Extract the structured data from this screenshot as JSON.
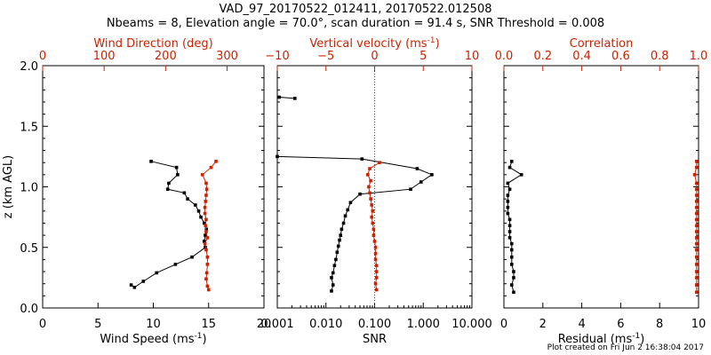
{
  "header": {
    "title": "VAD_97_20170522_012411, 20170522.012508",
    "subtitle": "Nbeams = 8, Elevation angle = 70.0°, scan duration = 91.4 s, SNR Threshold = 0.008"
  },
  "footer": "Plot created on Fri Jun  2 16:38:04 2017",
  "colors": {
    "primary": "#000000",
    "secondary": "#cc2200"
  },
  "chart_data": [
    {
      "type": "line",
      "panel": "left",
      "ylabel": "z (km AGL)",
      "ylim": [
        0,
        2.0
      ],
      "yticks": [
        "0.0",
        "0.5",
        "1.0",
        "1.5",
        "2.0"
      ],
      "xlabel": "Wind Speed (ms",
      "xlabel_sup": "-1",
      "xlabel_end": ")",
      "xlim": [
        0,
        20
      ],
      "xticks": [
        "0",
        "5",
        "10",
        "15",
        "20"
      ],
      "top_xlabel": "Wind Direction (deg)",
      "top_xlim": [
        0,
        360
      ],
      "top_xticks": [
        "0",
        "100",
        "200",
        "300"
      ],
      "series": [
        {
          "color": "#000000",
          "axis": "bottom",
          "points": [
            [
              9.8,
              1.21
            ],
            [
              12.1,
              1.16
            ],
            [
              12.2,
              1.1
            ],
            [
              11.4,
              1.03
            ],
            [
              11.3,
              0.98
            ],
            [
              12.8,
              0.95
            ],
            [
              13.1,
              0.9
            ],
            [
              13.8,
              0.85
            ],
            [
              14.1,
              0.8
            ],
            [
              14.3,
              0.75
            ],
            [
              14.6,
              0.7
            ],
            [
              14.8,
              0.65
            ],
            [
              14.7,
              0.6
            ],
            [
              14.6,
              0.55
            ],
            [
              14.7,
              0.5
            ],
            [
              13.5,
              0.42
            ],
            [
              12.0,
              0.36
            ],
            [
              10.3,
              0.29
            ],
            [
              9.1,
              0.22
            ],
            [
              8.3,
              0.17
            ],
            [
              8.0,
              0.19
            ]
          ]
        },
        {
          "color": "#cc2200",
          "axis": "top",
          "points": [
            [
              282,
              1.21
            ],
            [
              274,
              1.16
            ],
            [
              260,
              1.1
            ],
            [
              266,
              1.03
            ],
            [
              267,
              0.98
            ],
            [
              266,
              0.93
            ],
            [
              265,
              0.88
            ],
            [
              264,
              0.83
            ],
            [
              264,
              0.78
            ],
            [
              266,
              0.73
            ],
            [
              265,
              0.68
            ],
            [
              266,
              0.63
            ],
            [
              268,
              0.58
            ],
            [
              264,
              0.53
            ],
            [
              266,
              0.48
            ],
            [
              268,
              0.42
            ],
            [
              268,
              0.36
            ],
            [
              267,
              0.29
            ],
            [
              266,
              0.24
            ],
            [
              268,
              0.18
            ],
            [
              270,
              0.15
            ]
          ]
        }
      ]
    },
    {
      "type": "line",
      "panel": "middle",
      "xlabel": "SNR",
      "xscale": "log",
      "xlim": [
        0.001,
        10
      ],
      "xticks": [
        {
          "v": 0.001,
          "label": "0.001"
        },
        {
          "v": 0.01,
          "label": "0.010"
        },
        {
          "v": 0.1,
          "label": "0.100"
        },
        {
          "v": 1,
          "label": "1.000"
        },
        {
          "v": 10,
          "label": "10.000"
        }
      ],
      "top_xlabel": "Vertical velocity (ms",
      "top_xlabel_sup": "-1",
      "top_xlabel_end": ")",
      "top_xlim": [
        -10,
        10
      ],
      "top_xticks": [
        "−10",
        "−5",
        "0",
        "5",
        "10"
      ],
      "reference_line": {
        "axis": "top",
        "value": 0,
        "style": "dotted",
        "color": "#cc2200"
      },
      "series": [
        {
          "color": "#000000",
          "axis": "bottom",
          "segments": [
            [
              [
                0.0011,
                1.74
              ],
              [
                0.0023,
                1.73
              ]
            ],
            [
              [
                0.001,
                1.25
              ],
              [
                0.055,
                1.23
              ],
              [
                0.75,
                1.15
              ],
              [
                1.5,
                1.1
              ],
              [
                0.9,
                1.04
              ],
              [
                0.55,
                0.98
              ],
              [
                0.05,
                0.94
              ],
              [
                0.032,
                0.87
              ],
              [
                0.028,
                0.81
              ],
              [
                0.025,
                0.76
              ],
              [
                0.023,
                0.7
              ],
              [
                0.021,
                0.65
              ],
              [
                0.02,
                0.6
              ],
              [
                0.019,
                0.56
              ],
              [
                0.018,
                0.51
              ],
              [
                0.017,
                0.46
              ],
              [
                0.016,
                0.4
              ],
              [
                0.015,
                0.35
              ],
              [
                0.014,
                0.29
              ],
              [
                0.013,
                0.25
              ],
              [
                0.014,
                0.19
              ],
              [
                0.013,
                0.14
              ]
            ]
          ]
        },
        {
          "color": "#cc2200",
          "axis": "top",
          "segments": [
            [
              [
                0.5,
                1.2
              ],
              [
                -0.5,
                1.15
              ],
              [
                -0.7,
                1.1
              ],
              [
                -0.4,
                1.05
              ],
              [
                -0.6,
                1.0
              ],
              [
                -0.5,
                0.95
              ],
              [
                -0.4,
                0.9
              ],
              [
                -0.3,
                0.85
              ],
              [
                -0.2,
                0.8
              ],
              [
                -0.3,
                0.75
              ],
              [
                -0.2,
                0.7
              ],
              [
                -0.1,
                0.65
              ],
              [
                -0.1,
                0.6
              ],
              [
                0.0,
                0.55
              ],
              [
                0.1,
                0.5
              ],
              [
                0.1,
                0.45
              ],
              [
                0.1,
                0.4
              ],
              [
                0.2,
                0.35
              ],
              [
                0.2,
                0.3
              ],
              [
                0.2,
                0.25
              ],
              [
                0.1,
                0.2
              ],
              [
                0.2,
                0.15
              ]
            ]
          ]
        }
      ]
    },
    {
      "type": "line",
      "panel": "right",
      "xlabel": "Residual (ms",
      "xlabel_sup": "-1",
      "xlabel_end": ")",
      "xlim": [
        0,
        10
      ],
      "xticks": [
        "0",
        "2",
        "4",
        "6",
        "8",
        "10"
      ],
      "top_xlabel": "Correlation",
      "top_xlim": [
        0,
        1
      ],
      "top_xticks": [
        "0.0",
        "0.2",
        "0.4",
        "0.6",
        "0.8",
        "1.0"
      ],
      "series": [
        {
          "color": "#000000",
          "axis": "bottom",
          "points": [
            [
              0.4,
              1.21
            ],
            [
              0.3,
              1.16
            ],
            [
              0.9,
              1.1
            ],
            [
              0.2,
              1.03
            ],
            [
              0.3,
              0.98
            ],
            [
              0.2,
              0.93
            ],
            [
              0.2,
              0.88
            ],
            [
              0.2,
              0.83
            ],
            [
              0.2,
              0.78
            ],
            [
              0.3,
              0.73
            ],
            [
              0.3,
              0.68
            ],
            [
              0.3,
              0.63
            ],
            [
              0.3,
              0.58
            ],
            [
              0.4,
              0.53
            ],
            [
              0.4,
              0.48
            ],
            [
              0.4,
              0.42
            ],
            [
              0.4,
              0.36
            ],
            [
              0.5,
              0.3
            ],
            [
              0.5,
              0.25
            ],
            [
              0.4,
              0.19
            ],
            [
              0.5,
              0.13
            ]
          ]
        },
        {
          "color": "#cc2200",
          "axis": "top",
          "points": [
            [
              0.99,
              1.21
            ],
            [
              0.99,
              1.16
            ],
            [
              0.98,
              1.1
            ],
            [
              0.99,
              1.03
            ],
            [
              0.99,
              0.98
            ],
            [
              0.99,
              0.93
            ],
            [
              0.99,
              0.88
            ],
            [
              0.99,
              0.83
            ],
            [
              0.99,
              0.78
            ],
            [
              0.99,
              0.73
            ],
            [
              0.99,
              0.68
            ],
            [
              0.99,
              0.63
            ],
            [
              0.99,
              0.58
            ],
            [
              0.99,
              0.53
            ],
            [
              0.99,
              0.48
            ],
            [
              0.99,
              0.42
            ],
            [
              0.99,
              0.36
            ],
            [
              0.99,
              0.3
            ],
            [
              0.99,
              0.25
            ],
            [
              0.99,
              0.19
            ],
            [
              0.99,
              0.13
            ]
          ]
        }
      ]
    }
  ]
}
